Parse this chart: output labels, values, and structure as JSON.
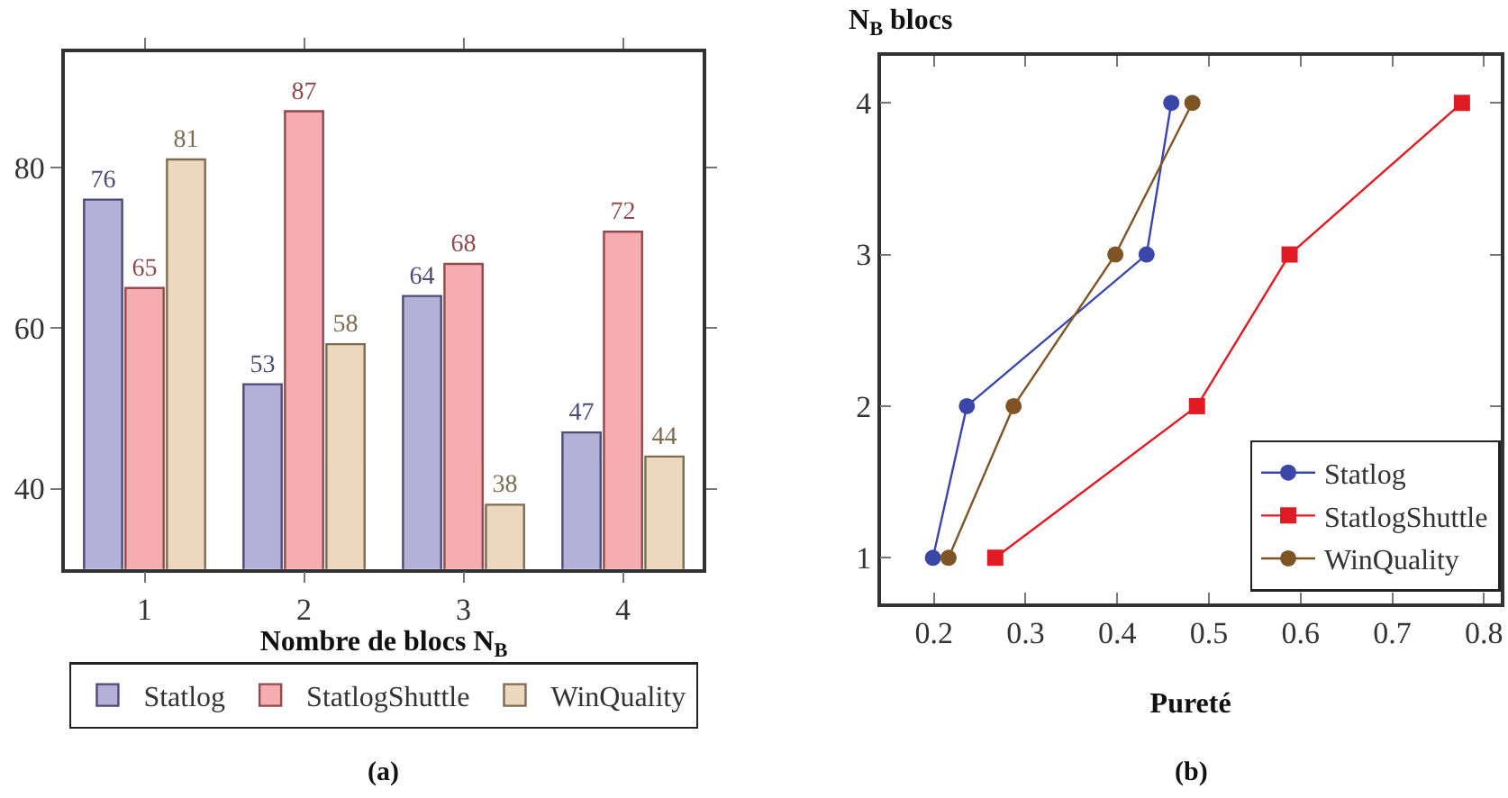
{
  "chart_data": [
    {
      "type": "bar",
      "xlabel": "Nombre de blocs N$_{B}$",
      "categories": [
        "1",
        "2",
        "3",
        "4"
      ],
      "ylim": [
        30,
        94.4
      ],
      "yticks": [
        40,
        60,
        80
      ],
      "legend": "bottom",
      "data_labels": true,
      "series": [
        {
          "name": "Statlog",
          "color": "#b3b0d9",
          "values": [
            76,
            53,
            64,
            47
          ]
        },
        {
          "name": "StatlogShuttle",
          "color": "#f5adb0",
          "values": [
            65,
            87,
            68,
            72
          ]
        },
        {
          "name": "WinQuality",
          "color": "#ecd8bf",
          "values": [
            81,
            58,
            38,
            44
          ]
        }
      ],
      "annotations": [
        "(a)"
      ]
    },
    {
      "type": "line",
      "xlabel": "Pureté",
      "ylabel": "N$_{B}$ blocs",
      "xlim": [
        0.142,
        0.818
      ],
      "xticks": [
        0.2,
        0.3,
        0.4,
        0.5,
        0.6,
        0.7,
        0.8
      ],
      "ylim": [
        0.7,
        4.31
      ],
      "yticks": [
        1,
        2,
        3,
        4
      ],
      "legend": "bottom right",
      "series": [
        {
          "name": "Statlog",
          "color": "#3a47a8",
          "marker": "circle",
          "x": [
            0.199,
            0.236,
            0.432,
            0.459
          ],
          "values": [
            1,
            2,
            3,
            4
          ]
        },
        {
          "name": "StatlogShuttle",
          "color": "#e01b24",
          "marker": "square",
          "x": [
            0.267,
            0.487,
            0.588,
            0.776
          ],
          "values": [
            1,
            2,
            3,
            4
          ]
        },
        {
          "name": "WinQuality",
          "color": "#7f5424",
          "marker": "circle",
          "x": [
            0.216,
            0.287,
            0.398,
            0.482
          ],
          "values": [
            1,
            2,
            3,
            4
          ]
        }
      ],
      "annotations": [
        "(b)"
      ]
    }
  ]
}
